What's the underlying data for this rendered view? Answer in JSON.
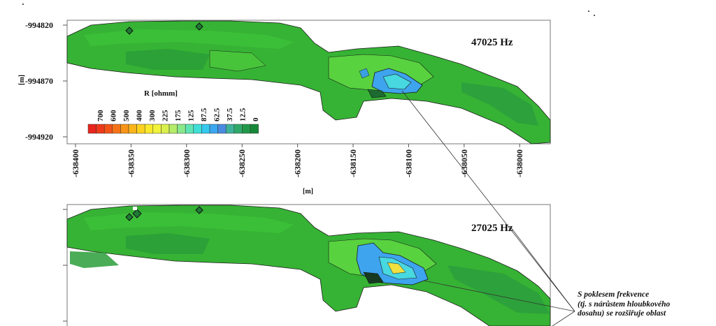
{
  "panel_top": {
    "frequency_label": "47025 Hz",
    "y_ticks": [
      "-994820",
      "-994870",
      "-994920"
    ],
    "y_axis_label": "[m]",
    "x_ticks": [
      "-638400",
      "-638350",
      "-638300",
      "-638250",
      "-638200",
      "-638150",
      "-638100",
      "-638050",
      "-638000"
    ],
    "x_axis_label": "[m]"
  },
  "panel_bottom": {
    "frequency_label": "27025 Hz"
  },
  "legend": {
    "title": "R [ohmm]",
    "values": [
      "700",
      "600",
      "500",
      "400",
      "300",
      "225",
      "175",
      "125",
      "87.5",
      "62.5",
      "37.5",
      "12.5",
      "0"
    ],
    "colors": [
      "#e8251d",
      "#ee3a1a",
      "#f25418",
      "#f57317",
      "#f89518",
      "#fbb51b",
      "#fdd21e",
      "#fbe92a",
      "#f0f339",
      "#d9f04c",
      "#b5ec6a",
      "#89e88c",
      "#5fe5b4",
      "#3fdfd7",
      "#35c9ef",
      "#3aa7f0",
      "#4a8ae0",
      "#3fb39a",
      "#2fa96a",
      "#22994a",
      "#168838"
    ]
  },
  "annotation": {
    "lines": [
      "S poklesem frekvence",
      "(tj. s nárůstem hloubkového",
      "dosahu) se rozšiřuje oblast"
    ]
  }
}
